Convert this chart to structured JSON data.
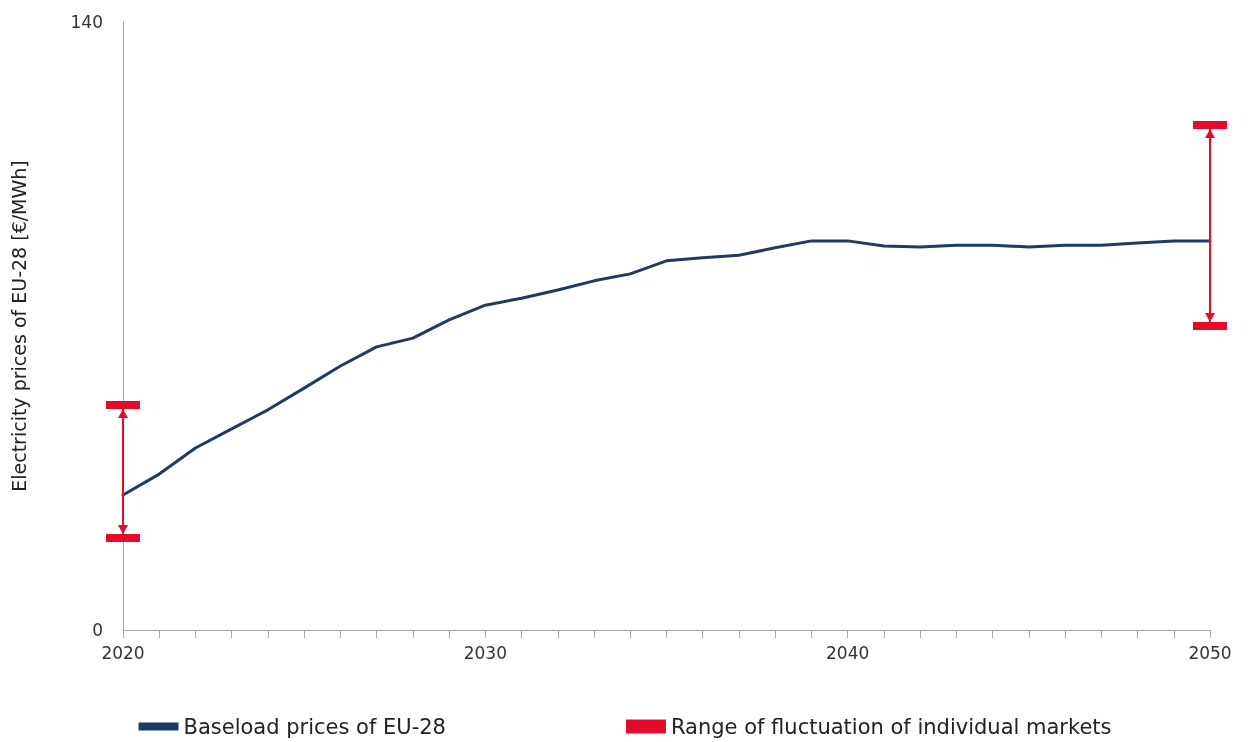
{
  "chart_data": {
    "type": "line",
    "ylabel": "Electricity prices of EU-28 [€/MWh]",
    "xlim": [
      2020,
      2050
    ],
    "xticks": [
      2020,
      {
        "value": 2021,
        "label": null
      },
      {
        "value": 2022,
        "label": null
      },
      {
        "value": 2023,
        "label": null
      },
      {
        "value": 2024,
        "label": null
      },
      {
        "value": 2025,
        "label": null
      },
      {
        "value": 2026,
        "label": null
      },
      {
        "value": 2027,
        "label": null
      },
      {
        "value": 2028,
        "label": null
      },
      {
        "value": 2029,
        "label": null
      },
      2030,
      {
        "value": 2031,
        "label": null
      },
      {
        "value": 2032,
        "label": null
      },
      {
        "value": 2033,
        "label": null
      },
      {
        "value": 2034,
        "label": null
      },
      {
        "value": 2035,
        "label": null
      },
      {
        "value": 2036,
        "label": null
      },
      {
        "value": 2037,
        "label": null
      },
      {
        "value": 2038,
        "label": null
      },
      {
        "value": 2039,
        "label": null
      },
      2040,
      {
        "value": 2041,
        "label": null
      },
      {
        "value": 2042,
        "label": null
      },
      {
        "value": 2043,
        "label": null
      },
      {
        "value": 2044,
        "label": null
      },
      {
        "value": 2045,
        "label": null
      },
      {
        "value": 2046,
        "label": null
      },
      {
        "value": 2047,
        "label": null
      },
      {
        "value": 2048,
        "label": null
      },
      {
        "value": 2049,
        "label": null
      },
      2050
    ],
    "ylim": [
      0,
      140
    ],
    "yticks": [
      0,
      140
    ],
    "grid": false,
    "legend": "bottom",
    "marker": "none",
    "line_style": "solid",
    "series": [
      {
        "name": "Baseload prices of EU-28",
        "color": "#1f3a68",
        "x": [
          2020,
          2021,
          2022,
          2023,
          2024,
          2025,
          2026,
          2027,
          2028,
          2029,
          2030,
          2031,
          2032,
          2033,
          2034,
          2035,
          2036,
          2037,
          2038,
          2039,
          2040,
          2041,
          2042,
          2043,
          2044,
          2045,
          2046,
          2047,
          2048,
          2049,
          2050
        ],
        "values": [
          31.1,
          35.9,
          41.9,
          46.3,
          50.7,
          55.7,
          60.8,
          65.2,
          67.2,
          71.4,
          74.8,
          76.4,
          78.3,
          80.4,
          82.0,
          85.0,
          85.7,
          86.3,
          88.0,
          89.6,
          89.6,
          88.4,
          88.2,
          88.6,
          88.6,
          88.2,
          88.6,
          88.6,
          89.1,
          89.6,
          89.6
        ]
      },
      {
        "name": "Range of fluctuation of individual markets",
        "color": "#e30a2a",
        "x": [
          2020,
          2020
        ],
        "values": [
          21.2,
          51.8
        ]
      },
      {
        "color": "#e30a2a",
        "x": [
          2050,
          2050
        ],
        "values": [
          70.0,
          116.3
        ]
      }
    ]
  }
}
